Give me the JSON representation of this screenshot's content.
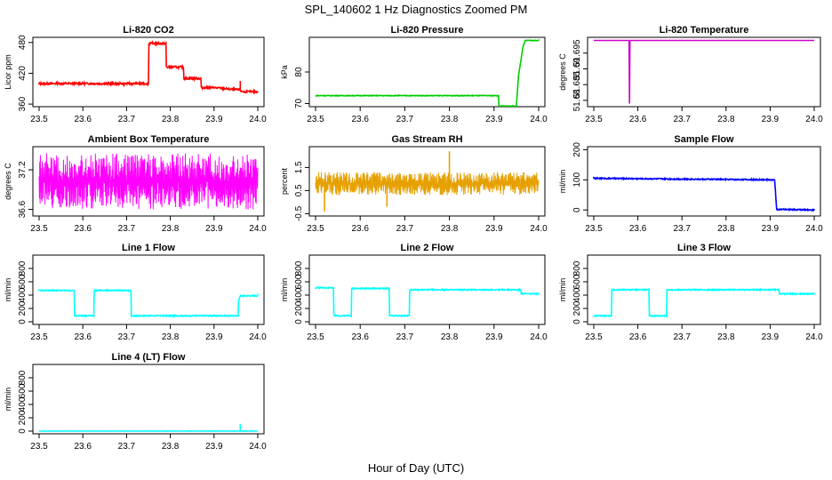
{
  "figure": {
    "title": "SPL_140602  1 Hz Diagnostics Zoomed PM",
    "xlabel": "Hour of Day (UTC)"
  },
  "chart_data": [
    {
      "type": "line",
      "title": "Li-820 CO2",
      "ylabel": "Licor ppm",
      "xlim": [
        23.5,
        24.0
      ],
      "ylim": [
        355,
        490
      ],
      "xticks": [
        "23.5",
        "23.6",
        "23.7",
        "23.8",
        "23.9",
        "24.0"
      ],
      "yticks": [
        360,
        420,
        480
      ],
      "color": "#ff0000",
      "series": [
        {
          "x": [
            23.5,
            23.75,
            23.751,
            23.76,
            23.79,
            23.791,
            23.83,
            23.831,
            23.87,
            23.871,
            23.9,
            23.95,
            23.96,
            23.961,
            23.97,
            24.0
          ],
          "y": [
            400,
            400,
            478,
            478,
            478,
            432,
            432,
            410,
            410,
            392,
            392,
            388,
            388,
            385,
            384,
            384
          ]
        }
      ],
      "noise": 2,
      "spikes": [
        [
          23.96,
          405
        ]
      ]
    },
    {
      "type": "line",
      "title": "Li-820 Pressure",
      "ylabel": "kPa",
      "xlim": [
        23.5,
        24.0
      ],
      "ylim": [
        69,
        91
      ],
      "xticks": [
        "23.5",
        "23.6",
        "23.7",
        "23.8",
        "23.9",
        "24.0"
      ],
      "yticks": [
        70,
        80
      ],
      "color": "#00cc00",
      "series": [
        {
          "x": [
            23.5,
            23.91,
            23.911,
            23.95,
            23.955,
            23.965,
            23.97,
            24.0
          ],
          "y": [
            72.5,
            72.5,
            69.2,
            69.2,
            79,
            88,
            90,
            90
          ]
        }
      ],
      "noise": 0.1,
      "spikes": []
    },
    {
      "type": "line",
      "title": "Li-820 Temperature",
      "ylabel": "degrees C",
      "xlim": [
        23.5,
        24.0
      ],
      "ylim": [
        51.678,
        51.7
      ],
      "xticks": [
        "23.5",
        "23.6",
        "23.7",
        "23.8",
        "23.9",
        "24.0"
      ],
      "yticks": [
        51.68,
        51.685,
        51.69,
        51.695
      ],
      "color": "#cc00cc",
      "series": [
        {
          "x": [
            23.5,
            23.58,
            23.58,
            23.581,
            23.581,
            24.0
          ],
          "y": [
            51.699,
            51.699,
            51.679,
            51.679,
            51.699,
            51.699
          ]
        }
      ],
      "noise": 0,
      "spikes": []
    },
    {
      "type": "line",
      "title": "Ambient Box Temperature",
      "ylabel": "degrees C",
      "xlim": [
        23.5,
        24.0
      ],
      "ylim": [
        36.5,
        37.55
      ],
      "xticks": [
        "23.5",
        "23.6",
        "23.7",
        "23.8",
        "23.9",
        "24.0"
      ],
      "yticks": [
        36.6,
        37.2
      ],
      "color": "#ff00ff",
      "series": [
        {
          "x": [
            23.5,
            24.0
          ],
          "y": [
            37.0,
            37.0
          ]
        }
      ],
      "band": [
        36.6,
        37.45
      ],
      "noise": 0,
      "spikes": []
    },
    {
      "type": "line",
      "title": "Gas Stream RH",
      "ylabel": "percent",
      "xlim": [
        23.5,
        24.0
      ],
      "ylim": [
        -0.6,
        2.4
      ],
      "xticks": [
        "23.5",
        "23.6",
        "23.7",
        "23.8",
        "23.9",
        "24.0"
      ],
      "yticks": [
        -0.5,
        0.5,
        1.5
      ],
      "color": "#e6a000",
      "series": [
        {
          "x": [
            23.5,
            24.0
          ],
          "y": [
            0.8,
            0.8
          ]
        }
      ],
      "band": [
        0.3,
        1.3
      ],
      "noise": 0,
      "spikes": [
        [
          23.8,
          2.2
        ],
        [
          23.52,
          -0.4
        ],
        [
          23.66,
          -0.2
        ]
      ]
    },
    {
      "type": "line",
      "title": "Sample Flow",
      "ylabel": "ml/min",
      "xlim": [
        23.5,
        24.0
      ],
      "ylim": [
        -20,
        210
      ],
      "xticks": [
        "23.5",
        "23.6",
        "23.7",
        "23.8",
        "23.9",
        "24.0"
      ],
      "yticks": [
        0,
        100,
        200
      ],
      "color": "#0000ff",
      "series": [
        {
          "x": [
            23.5,
            23.91,
            23.915,
            24.0
          ],
          "y": [
            105,
            100,
            2,
            0
          ]
        }
      ],
      "noise": 2,
      "spikes": []
    },
    {
      "type": "line",
      "title": "Line 1 Flow",
      "ylabel": "ml/min",
      "xlim": [
        23.5,
        24.0
      ],
      "ylim": [
        -40,
        1000
      ],
      "xticks": [
        "23.5",
        "23.6",
        "23.7",
        "23.8",
        "23.9",
        "24.0"
      ],
      "yticks": [
        0,
        200,
        400,
        600,
        800
      ],
      "color": "#00ffff",
      "series": [
        {
          "x": [
            23.5,
            23.5,
            23.58,
            23.58,
            23.625,
            23.625,
            23.71,
            23.71,
            23.955,
            23.955,
            23.96,
            24.0
          ],
          "y": [
            100,
            470,
            470,
            90,
            90,
            470,
            470,
            90,
            90,
            300,
            390,
            390
          ]
        }
      ],
      "noise": 8,
      "spikes": []
    },
    {
      "type": "line",
      "title": "Line 2 Flow",
      "ylabel": "ml/min",
      "xlim": [
        23.5,
        24.0
      ],
      "ylim": [
        -40,
        1000
      ],
      "xticks": [
        "23.5",
        "23.6",
        "23.7",
        "23.8",
        "23.9",
        "24.0"
      ],
      "yticks": [
        0,
        200,
        400,
        600,
        800
      ],
      "color": "#00ffff",
      "series": [
        {
          "x": [
            23.5,
            23.54,
            23.54,
            23.58,
            23.58,
            23.665,
            23.665,
            23.71,
            23.71,
            23.96,
            23.96,
            24.0
          ],
          "y": [
            510,
            510,
            90,
            90,
            500,
            500,
            90,
            90,
            480,
            480,
            420,
            420
          ]
        }
      ],
      "noise": 8,
      "spikes": []
    },
    {
      "type": "line",
      "title": "Line 3 Flow",
      "ylabel": "ml/min",
      "xlim": [
        23.5,
        24.0
      ],
      "ylim": [
        -40,
        1000
      ],
      "xticks": [
        "23.5",
        "23.6",
        "23.7",
        "23.8",
        "23.9",
        "24.0"
      ],
      "yticks": [
        0,
        200,
        400,
        600,
        800
      ],
      "color": "#00ffff",
      "series": [
        {
          "x": [
            23.5,
            23.5,
            23.54,
            23.54,
            23.625,
            23.625,
            23.665,
            23.665,
            23.92,
            23.92,
            24.0
          ],
          "y": [
            470,
            90,
            90,
            480,
            480,
            90,
            90,
            480,
            480,
            420,
            420
          ]
        }
      ],
      "noise": 8,
      "spikes": []
    },
    {
      "type": "line",
      "title": "Line 4 (LT) Flow",
      "ylabel": "ml/min",
      "xlim": [
        23.5,
        24.0
      ],
      "ylim": [
        -40,
        1000
      ],
      "xticks": [
        "23.5",
        "23.6",
        "23.7",
        "23.8",
        "23.9",
        "24.0"
      ],
      "yticks": [
        0,
        200,
        400,
        600,
        800
      ],
      "color": "#00ffff",
      "series": [
        {
          "x": [
            23.5,
            24.0
          ],
          "y": [
            0,
            0
          ]
        }
      ],
      "noise": 1,
      "spikes": [
        [
          23.96,
          110
        ]
      ]
    }
  ]
}
